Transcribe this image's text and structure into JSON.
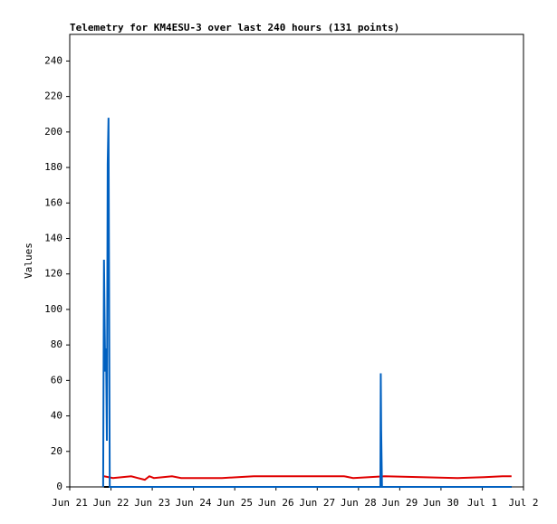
{
  "chart_data": {
    "type": "line",
    "title": "Telemetry for KM4ESU-3 over last 240 hours (131 points)",
    "y_label": "Values",
    "xlim": [
      0,
      11
    ],
    "xticks": [
      {
        "value": 0,
        "label": "Jun 21"
      },
      {
        "value": 1,
        "label": "Jun 22"
      },
      {
        "value": 2,
        "label": "Jun 23"
      },
      {
        "value": 3,
        "label": "Jun 24"
      },
      {
        "value": 4,
        "label": "Jun 25"
      },
      {
        "value": 5,
        "label": "Jun 26"
      },
      {
        "value": 6,
        "label": "Jun 27"
      },
      {
        "value": 7,
        "label": "Jun 28"
      },
      {
        "value": 8,
        "label": "Jun 29"
      },
      {
        "value": 9,
        "label": "Jun 30"
      },
      {
        "value": 10,
        "label": "Jul 1"
      },
      {
        "value": 11,
        "label": "Jul 2"
      }
    ],
    "ylim": [
      0,
      255
    ],
    "yticks": [
      0,
      20,
      40,
      60,
      80,
      100,
      120,
      140,
      160,
      180,
      200,
      220,
      240
    ],
    "series": [
      {
        "color": "#000000",
        "x": [
          0.83,
          10.71
        ],
        "values": [
          0,
          0
        ]
      },
      {
        "color": "#e00000",
        "x": [
          0.83,
          1.05,
          1.49,
          1.65,
          1.82,
          1.93,
          2.04,
          2.48,
          2.7,
          3.69,
          4.46,
          6.65,
          6.87,
          7.64,
          8.52,
          9.4,
          10.05,
          10.49,
          10.71
        ],
        "values": [
          6,
          5,
          6,
          5,
          4,
          6,
          5,
          6,
          5,
          5,
          6,
          6,
          5,
          6,
          5.5,
          5,
          5.5,
          6,
          6
        ]
      },
      {
        "color": "#0060c0",
        "x": [
          0.81,
          0.83,
          0.86,
          0.88,
          0.9,
          0.92,
          0.94,
          0.97,
          7.53,
          7.54,
          7.55,
          7.57,
          10.71
        ],
        "values": [
          0,
          128,
          65,
          78,
          26,
          182,
          208,
          0,
          0,
          64,
          32,
          0,
          0
        ]
      }
    ]
  }
}
